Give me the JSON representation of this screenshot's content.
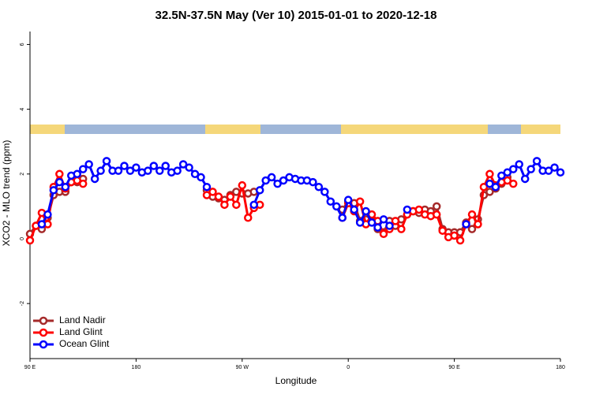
{
  "chart_data": {
    "type": "line",
    "title": "32.5N-37.5N May (Ver 10)   2015-01-01 to 2020-12-18",
    "x_label": "Longitude",
    "y_label": "XCO2 - MLO trend (ppm)",
    "xlim": [
      90,
      540
    ],
    "ylim": [
      -3.7,
      6.4
    ],
    "xticks": [
      {
        "value": 90,
        "label": "90 E"
      },
      180,
      {
        "value": 270,
        "label": "90 W"
      },
      {
        "value": 360,
        "label": "0"
      },
      {
        "value": 450,
        "label": "90 E"
      },
      {
        "value": 540,
        "label": "180"
      }
    ],
    "yticks": [
      -2,
      0,
      2,
      4,
      6
    ],
    "legend": "bottom-left",
    "x": [
      90,
      95,
      100,
      105,
      110,
      115,
      120,
      125,
      130,
      135,
      140,
      145,
      150,
      155,
      160,
      165,
      170,
      175,
      180,
      185,
      190,
      195,
      200,
      205,
      210,
      215,
      220,
      225,
      230,
      235,
      240,
      245,
      250,
      255,
      260,
      265,
      270,
      275,
      280,
      285,
      290,
      295,
      300,
      305,
      310,
      315,
      320,
      325,
      330,
      335,
      340,
      345,
      350,
      355,
      360,
      365,
      370,
      375,
      380,
      385,
      390,
      395,
      400,
      405,
      410,
      415,
      420,
      425,
      430,
      435,
      440,
      445,
      450,
      455,
      460,
      465,
      470,
      475,
      480,
      485,
      490,
      495,
      500,
      505,
      510,
      515,
      520,
      525,
      530,
      535,
      540
    ],
    "series": [
      {
        "name": "Land Nadir",
        "color": "#a52a2a",
        "values": [
          0.15,
          0.4,
          0.3,
          0.65,
          1.35,
          1.45,
          1.45,
          1.75,
          1.75,
          1.85,
          null,
          null,
          null,
          null,
          null,
          null,
          null,
          null,
          null,
          null,
          null,
          null,
          null,
          null,
          null,
          null,
          null,
          null,
          null,
          null,
          1.5,
          1.3,
          1.25,
          1.2,
          1.35,
          1.45,
          1.4,
          1.4,
          1.45,
          null,
          null,
          null,
          null,
          null,
          null,
          null,
          null,
          null,
          null,
          null,
          null,
          null,
          null,
          0.9,
          1.15,
          1.1,
          0.55,
          0.6,
          0.55,
          0.3,
          0.2,
          0.55,
          0.4,
          0.6,
          0.75,
          0.85,
          0.8,
          0.9,
          0.85,
          1.0,
          0.3,
          0.2,
          0.2,
          0.2,
          0.5,
          0.3,
          0.6,
          1.35,
          1.45,
          1.55,
          1.7,
          1.9,
          null,
          null,
          null,
          null,
          null,
          null,
          null,
          null,
          null
        ]
      },
      {
        "name": "Land Glint",
        "color": "#ff0000",
        "values": [
          -0.05,
          0.4,
          0.8,
          0.45,
          1.6,
          2.0,
          1.55,
          1.75,
          1.8,
          1.7,
          null,
          null,
          null,
          null,
          null,
          null,
          null,
          null,
          null,
          null,
          null,
          null,
          null,
          null,
          null,
          null,
          null,
          null,
          null,
          null,
          1.35,
          1.45,
          1.3,
          1.05,
          1.3,
          1.05,
          1.65,
          0.65,
          0.95,
          1.05,
          null,
          null,
          null,
          null,
          null,
          null,
          null,
          null,
          null,
          null,
          null,
          null,
          null,
          0.65,
          1.1,
          0.85,
          1.15,
          0.45,
          0.75,
          0.55,
          0.15,
          0.3,
          0.55,
          0.3,
          0.75,
          0.85,
          0.9,
          0.75,
          0.7,
          0.75,
          0.25,
          0.05,
          0.1,
          -0.05,
          0.45,
          0.75,
          0.45,
          1.6,
          2.0,
          1.65,
          1.75,
          1.8,
          1.7,
          null,
          null,
          null,
          null,
          null,
          null,
          null,
          null
        ]
      },
      {
        "name": "Ocean Glint",
        "color": "#0000ff",
        "values": [
          null,
          null,
          0.45,
          0.75,
          1.5,
          1.75,
          1.6,
          1.95,
          2.0,
          2.15,
          2.3,
          1.85,
          2.1,
          2.4,
          2.1,
          2.1,
          2.25,
          2.1,
          2.2,
          2.05,
          2.1,
          2.25,
          2.1,
          2.25,
          2.05,
          2.1,
          2.3,
          2.2,
          2.0,
          1.9,
          1.6,
          null,
          null,
          null,
          null,
          null,
          null,
          null,
          1.05,
          1.5,
          1.8,
          1.9,
          1.7,
          1.8,
          1.9,
          1.85,
          1.8,
          1.8,
          1.75,
          1.6,
          1.45,
          1.15,
          1.0,
          0.65,
          1.2,
          0.9,
          0.5,
          0.85,
          0.5,
          0.35,
          0.6,
          0.4,
          null,
          null,
          0.9,
          null,
          null,
          null,
          null,
          null,
          null,
          null,
          null,
          null,
          0.45,
          null,
          null,
          null,
          1.7,
          1.6,
          1.95,
          2.05,
          2.15,
          2.3,
          1.85,
          2.15,
          2.4,
          2.1,
          2.1,
          2.2,
          2.05
        ]
      }
    ]
  }
}
